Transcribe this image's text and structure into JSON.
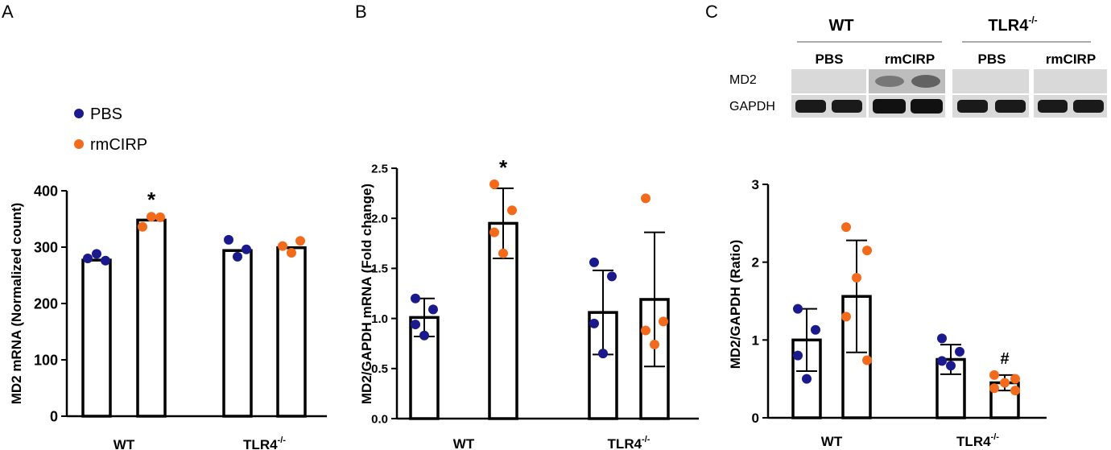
{
  "colors": {
    "pbs": "#1a1a8c",
    "rmcirp": "#f26b1d",
    "bar": "#000000"
  },
  "panel_a": {
    "letter": "A",
    "legend": [
      {
        "label": "PBS",
        "color": "#1a1a8c"
      },
      {
        "label": "rmCIRP",
        "color": "#f26b1d"
      }
    ]
  },
  "panel_b": {
    "letter": "B"
  },
  "panel_c": {
    "letter": "C",
    "blot": {
      "groups": [
        "WT",
        "TLR4"
      ],
      "group_sup": "-/-",
      "lanes": [
        "PBS",
        "rmCIRP",
        "PBS",
        "rmCIRP"
      ],
      "rows": [
        "MD2",
        "GAPDH"
      ]
    }
  },
  "chart_data": [
    {
      "id": "A",
      "type": "bar",
      "ylabel": "MD2 mRNA (Normalized count)",
      "ylim": [
        0,
        400
      ],
      "yticks": [
        "0",
        "100",
        "200",
        "300",
        "400"
      ],
      "groups": [
        "WT",
        "TLR4"
      ],
      "group_sup": [
        "",
        "-/-"
      ],
      "series": [
        {
          "name": "PBS",
          "values": [
            277,
            294
          ]
        },
        {
          "name": "rmCIRP",
          "values": [
            348,
            299
          ]
        }
      ],
      "points": [
        [
          [
            280,
            288,
            276
          ],
          [
            313,
            283,
            296
          ]
        ],
        [
          [
            336,
            354,
            353
          ],
          [
            302,
            290,
            311
          ]
        ]
      ],
      "error": null,
      "annotations": [
        {
          "group": 0,
          "series": 1,
          "text": "*"
        }
      ]
    },
    {
      "id": "B",
      "type": "bar",
      "ylabel": "MD2/GAPDH mRNA (Fold change)",
      "ylim": [
        0,
        2.5
      ],
      "yticks": [
        "0.0",
        "0.5",
        "1.0",
        "1.5",
        "2.0",
        "2.5"
      ],
      "groups": [
        "WT",
        "TLR4"
      ],
      "group_sup": [
        "",
        "-/-"
      ],
      "series": [
        {
          "name": "PBS",
          "values": [
            1.01,
            1.06
          ]
        },
        {
          "name": "rmCIRP",
          "values": [
            1.95,
            1.19
          ]
        }
      ],
      "points": [
        [
          [
            1.2,
            1.09,
            0.94,
            0.83
          ],
          [
            1.56,
            1.42,
            0.95,
            0.65
          ]
        ],
        [
          [
            2.34,
            2.08,
            1.86,
            1.65
          ],
          [
            2.2,
            0.97,
            0.88,
            0.74
          ]
        ]
      ],
      "error": [
        [
          0.19,
          0.42
        ],
        [
          0.35,
          0.67
        ]
      ],
      "annotations": [
        {
          "group": 0,
          "series": 1,
          "text": "*"
        }
      ]
    },
    {
      "id": "C",
      "type": "bar",
      "ylabel": "MD2/GAPDH (Ratio)",
      "ylim": [
        0,
        3
      ],
      "yticks": [
        "0",
        "1",
        "2",
        "3"
      ],
      "groups": [
        "WT",
        "TLR4"
      ],
      "group_sup": [
        "",
        "-/-"
      ],
      "series": [
        {
          "name": "PBS",
          "values": [
            1.0,
            0.75
          ]
        },
        {
          "name": "rmCIRP",
          "values": [
            1.56,
            0.45
          ]
        }
      ],
      "points": [
        [
          [
            1.4,
            1.13,
            0.8,
            0.5
          ],
          [
            1.02,
            0.85,
            0.73,
            0.67
          ]
        ],
        [
          [
            2.45,
            2.15,
            1.8,
            1.3,
            0.74
          ],
          [
            0.55,
            0.5,
            0.45,
            0.38,
            0.35
          ]
        ]
      ],
      "error": [
        [
          0.4,
          0.19
        ],
        [
          0.72,
          0.1
        ]
      ],
      "annotations": [
        {
          "group": 1,
          "series": 1,
          "text": "#"
        }
      ]
    }
  ]
}
